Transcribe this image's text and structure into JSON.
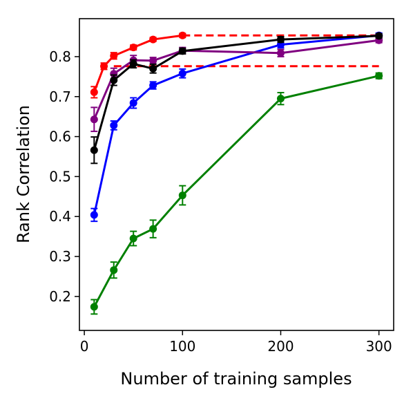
{
  "chart_data": {
    "type": "line",
    "title": "",
    "xlabel": "Number of training samples",
    "ylabel": "Rank Correlation",
    "xlim": [
      -5,
      315
    ],
    "ylim": [
      0.115,
      0.895
    ],
    "xticks": [
      0,
      100,
      200,
      300
    ],
    "xtick_labels": [
      "0",
      "100",
      "200",
      "300"
    ],
    "yticks": [
      0.2,
      0.3,
      0.4,
      0.5,
      0.6,
      0.7,
      0.8
    ],
    "ytick_labels": [
      "0.2",
      "0.3",
      "0.4",
      "0.5",
      "0.6",
      "0.7",
      "0.8"
    ],
    "grid": false,
    "legend": "none",
    "reference_lines": [
      {
        "y": 0.853,
        "x_start": 100,
        "x_end": 300,
        "color": "#ff0000",
        "style": "dashed"
      },
      {
        "y": 0.776,
        "x_start": 30,
        "x_end": 300,
        "color": "#ff0000",
        "style": "dashed"
      }
    ],
    "series": [
      {
        "color": "#008000",
        "x": [
          10,
          30,
          50,
          70,
          100,
          200,
          300
        ],
        "y": [
          0.174,
          0.266,
          0.345,
          0.369,
          0.453,
          0.695,
          0.752
        ],
        "err": [
          0.018,
          0.02,
          0.018,
          0.022,
          0.024,
          0.015,
          0.007
        ]
      },
      {
        "color": "#0000ff",
        "x": [
          10,
          30,
          50,
          70,
          100,
          200,
          300
        ],
        "y": [
          0.404,
          0.628,
          0.684,
          0.728,
          0.758,
          0.83,
          0.853
        ],
        "err": [
          0.016,
          0.011,
          0.013,
          0.009,
          0.011,
          0.008,
          0.006
        ]
      },
      {
        "color": "#800080",
        "x": [
          10,
          30,
          50,
          70,
          100,
          200,
          300
        ],
        "y": [
          0.643,
          0.757,
          0.791,
          0.79,
          0.815,
          0.809,
          0.841
        ],
        "err": [
          0.03,
          0.014,
          0.012,
          0.008,
          0.008,
          0.009,
          0.006
        ]
      },
      {
        "color": "#000000",
        "x": [
          10,
          30,
          50,
          70,
          100,
          200,
          300
        ],
        "y": [
          0.566,
          0.741,
          0.782,
          0.77,
          0.814,
          0.843,
          0.852
        ],
        "err": [
          0.033,
          0.013,
          0.01,
          0.011,
          0.007,
          0.007,
          0.005
        ]
      },
      {
        "color": "#ff0000",
        "x": [
          10,
          20,
          30,
          50,
          70,
          100
        ],
        "y": [
          0.711,
          0.776,
          0.802,
          0.823,
          0.843,
          0.853
        ],
        "err": [
          0.014,
          0.008,
          0.008,
          0.006,
          0.005,
          0.005
        ]
      }
    ]
  }
}
